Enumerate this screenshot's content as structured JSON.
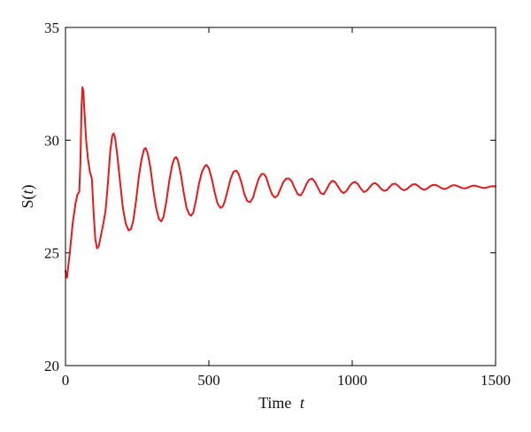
{
  "chart_data": {
    "type": "line",
    "title": "",
    "xlabel_prefix": "Time",
    "xlabel_var": "t",
    "ylabel_func": "S(",
    "ylabel_var": "t",
    "ylabel_close": ")",
    "xlim": [
      0,
      1500
    ],
    "ylim": [
      20,
      35
    ],
    "x_ticks": [
      0,
      500,
      1000,
      1500
    ],
    "y_ticks": [
      20,
      25,
      30,
      35
    ],
    "grid": false,
    "legend": "none",
    "series": [
      {
        "color": "#e8191b",
        "points": [
          [
            0,
            24.2
          ],
          [
            5,
            23.9
          ],
          [
            15,
            25.0
          ],
          [
            25,
            26.3
          ],
          [
            35,
            27.2
          ],
          [
            42,
            27.6
          ],
          [
            48,
            27.7
          ],
          [
            52,
            29.0
          ],
          [
            56,
            31.5
          ],
          [
            59,
            32.35
          ],
          [
            62,
            32.2
          ],
          [
            66,
            31.3
          ],
          [
            72,
            30.0
          ],
          [
            78,
            29.2
          ],
          [
            85,
            28.6
          ],
          [
            92,
            28.3
          ],
          [
            98,
            26.8
          ],
          [
            104,
            25.6
          ],
          [
            110,
            25.2
          ],
          [
            116,
            25.3
          ],
          [
            124,
            25.8
          ],
          [
            132,
            26.3
          ],
          [
            140,
            26.9
          ],
          [
            148,
            28.1
          ],
          [
            156,
            29.5
          ],
          [
            163,
            30.2
          ],
          [
            168,
            30.3
          ],
          [
            173,
            30.1
          ],
          [
            180,
            29.4
          ],
          [
            190,
            28.2
          ],
          [
            200,
            27.0
          ],
          [
            210,
            26.3
          ],
          [
            220,
            26.0
          ],
          [
            228,
            26.05
          ],
          [
            236,
            26.4
          ],
          [
            246,
            27.3
          ],
          [
            256,
            28.4
          ],
          [
            266,
            29.2
          ],
          [
            274,
            29.6
          ],
          [
            280,
            29.65
          ],
          [
            287,
            29.4
          ],
          [
            296,
            28.8
          ],
          [
            306,
            27.8
          ],
          [
            316,
            27.0
          ],
          [
            326,
            26.5
          ],
          [
            334,
            26.4
          ],
          [
            342,
            26.6
          ],
          [
            352,
            27.3
          ],
          [
            362,
            28.2
          ],
          [
            372,
            28.9
          ],
          [
            380,
            29.2
          ],
          [
            386,
            29.25
          ],
          [
            392,
            29.1
          ],
          [
            402,
            28.5
          ],
          [
            412,
            27.7
          ],
          [
            422,
            27.0
          ],
          [
            432,
            26.7
          ],
          [
            438,
            26.65
          ],
          [
            446,
            26.8
          ],
          [
            456,
            27.4
          ],
          [
            466,
            28.1
          ],
          [
            476,
            28.6
          ],
          [
            486,
            28.85
          ],
          [
            492,
            28.9
          ],
          [
            500,
            28.75
          ],
          [
            510,
            28.3
          ],
          [
            520,
            27.7
          ],
          [
            530,
            27.2
          ],
          [
            540,
            27.0
          ],
          [
            548,
            27.05
          ],
          [
            556,
            27.3
          ],
          [
            566,
            27.8
          ],
          [
            576,
            28.3
          ],
          [
            586,
            28.6
          ],
          [
            596,
            28.65
          ],
          [
            604,
            28.5
          ],
          [
            614,
            28.1
          ],
          [
            624,
            27.6
          ],
          [
            634,
            27.3
          ],
          [
            644,
            27.25
          ],
          [
            654,
            27.45
          ],
          [
            664,
            27.9
          ],
          [
            674,
            28.3
          ],
          [
            684,
            28.5
          ],
          [
            692,
            28.5
          ],
          [
            700,
            28.35
          ],
          [
            710,
            27.95
          ],
          [
            720,
            27.6
          ],
          [
            730,
            27.45
          ],
          [
            740,
            27.55
          ],
          [
            750,
            27.85
          ],
          [
            760,
            28.15
          ],
          [
            770,
            28.3
          ],
          [
            780,
            28.3
          ],
          [
            790,
            28.15
          ],
          [
            800,
            27.85
          ],
          [
            810,
            27.6
          ],
          [
            820,
            27.55
          ],
          [
            830,
            27.75
          ],
          [
            840,
            28.05
          ],
          [
            850,
            28.25
          ],
          [
            860,
            28.3
          ],
          [
            870,
            28.15
          ],
          [
            880,
            27.9
          ],
          [
            890,
            27.65
          ],
          [
            900,
            27.6
          ],
          [
            910,
            27.8
          ],
          [
            920,
            28.05
          ],
          [
            930,
            28.2
          ],
          [
            940,
            28.15
          ],
          [
            950,
            27.95
          ],
          [
            960,
            27.75
          ],
          [
            970,
            27.65
          ],
          [
            980,
            27.75
          ],
          [
            990,
            27.95
          ],
          [
            1000,
            28.1
          ],
          [
            1010,
            28.15
          ],
          [
            1020,
            28.05
          ],
          [
            1030,
            27.85
          ],
          [
            1040,
            27.7
          ],
          [
            1050,
            27.75
          ],
          [
            1060,
            27.9
          ],
          [
            1070,
            28.05
          ],
          [
            1080,
            28.1
          ],
          [
            1090,
            28.0
          ],
          [
            1100,
            27.85
          ],
          [
            1110,
            27.75
          ],
          [
            1120,
            27.78
          ],
          [
            1130,
            27.92
          ],
          [
            1140,
            28.05
          ],
          [
            1150,
            28.07
          ],
          [
            1160,
            27.98
          ],
          [
            1170,
            27.85
          ],
          [
            1180,
            27.78
          ],
          [
            1190,
            27.82
          ],
          [
            1200,
            27.94
          ],
          [
            1210,
            28.03
          ],
          [
            1220,
            28.05
          ],
          [
            1230,
            27.97
          ],
          [
            1240,
            27.86
          ],
          [
            1250,
            27.8
          ],
          [
            1260,
            27.84
          ],
          [
            1270,
            27.94
          ],
          [
            1280,
            28.01
          ],
          [
            1290,
            28.02
          ],
          [
            1300,
            27.96
          ],
          [
            1310,
            27.88
          ],
          [
            1320,
            27.83
          ],
          [
            1330,
            27.86
          ],
          [
            1340,
            27.94
          ],
          [
            1350,
            28.0
          ],
          [
            1360,
            28.0
          ],
          [
            1370,
            27.95
          ],
          [
            1380,
            27.89
          ],
          [
            1390,
            27.86
          ],
          [
            1400,
            27.88
          ],
          [
            1410,
            27.94
          ],
          [
            1420,
            27.98
          ],
          [
            1430,
            27.98
          ],
          [
            1440,
            27.94
          ],
          [
            1450,
            27.9
          ],
          [
            1460,
            27.88
          ],
          [
            1470,
            27.9
          ],
          [
            1480,
            27.94
          ],
          [
            1490,
            27.96
          ],
          [
            1500,
            27.95
          ]
        ]
      }
    ]
  }
}
